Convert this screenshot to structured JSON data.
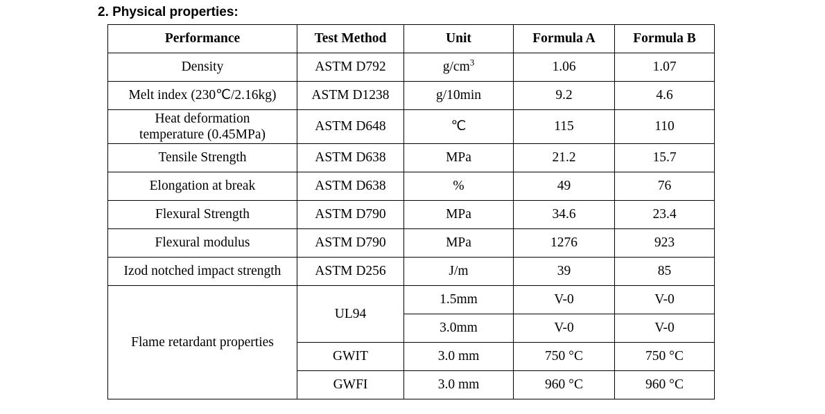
{
  "heading": "2. Physical properties:",
  "table": {
    "headers": [
      "Performance",
      "Test Method",
      "Unit",
      "Formula A",
      "Formula B"
    ],
    "rows": [
      {
        "performance": "Density",
        "method": "ASTM D792",
        "unit": "g/cm",
        "unit_sup": "3",
        "a": "1.06",
        "b": "1.07"
      },
      {
        "performance": "Melt index (230℃/2.16kg)",
        "method": "ASTM D1238",
        "unit": "g/10min",
        "a": "9.2",
        "b": "4.6"
      },
      {
        "performance_line1": "Heat deformation",
        "performance_line2": "temperature (0.45MPa)",
        "method": "ASTM D648",
        "unit": "℃",
        "a": "115",
        "b": "110"
      },
      {
        "performance": "Tensile Strength",
        "method": "ASTM D638",
        "unit": "MPa",
        "a": "21.2",
        "b": "15.7"
      },
      {
        "performance": "Elongation at break",
        "method": "ASTM D638",
        "unit": "%",
        "a": "49",
        "b": "76"
      },
      {
        "performance": "Flexural Strength",
        "method": "ASTM D790",
        "unit": "MPa",
        "a": "34.6",
        "b": "23.4"
      },
      {
        "performance": "Flexural modulus",
        "method": "ASTM D790",
        "unit": "MPa",
        "a": "1276",
        "b": "923"
      },
      {
        "performance": "Izod notched impact strength",
        "method": "ASTM D256",
        "unit": "J/m",
        "a": "39",
        "b": "85"
      }
    ],
    "flame": {
      "performance": "Flame retardant properties",
      "ul94_method": "UL94",
      "ul94": [
        {
          "unit": "1.5mm",
          "a": "V-0",
          "b": "V-0"
        },
        {
          "unit": "3.0mm",
          "a": "V-0",
          "b": "V-0"
        }
      ],
      "gwit": {
        "method": "GWIT",
        "unit": "3.0 mm",
        "a": "750 °C",
        "b": "750 °C"
      },
      "gwfi": {
        "method": "GWFI",
        "unit": "3.0 mm",
        "a": "960 °C",
        "b": "960 °C"
      }
    }
  }
}
